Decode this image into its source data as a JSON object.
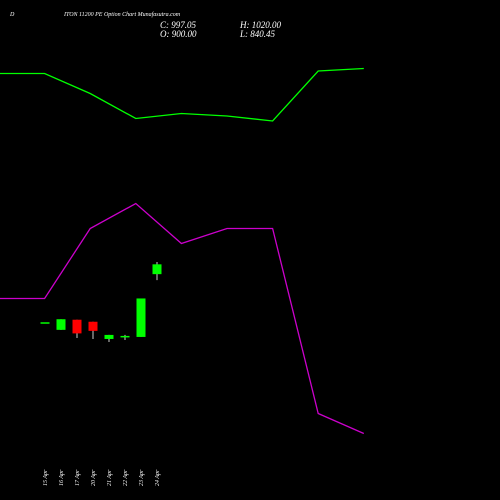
{
  "header": {
    "symbol_prefix": "D",
    "title": "ITON 11200 PE Option  Chart Munafasutra.com",
    "close_label": "C: 997.05",
    "open_label": "O: 900.00",
    "high_label": "H: 1020.00",
    "low_label": "L: 840.45"
  },
  "chart_data": {
    "type": "candlestick",
    "categories": [
      "15 Apr",
      "16 Apr",
      "17 Apr",
      "20 Apr",
      "21 Apr",
      "22 Apr",
      "23 Apr",
      "24 Apr"
    ],
    "candles": [
      {
        "date": "15 Apr",
        "open": 425,
        "close": 425,
        "high": 425,
        "low": 425,
        "color": "#00ff00"
      },
      {
        "date": "16 Apr",
        "open": 350,
        "close": 455,
        "high": 455,
        "low": 350,
        "color": "#00ff00"
      },
      {
        "date": "17 Apr",
        "open": 450,
        "close": 315,
        "high": 450,
        "low": 270,
        "color": "#ff0000"
      },
      {
        "date": "20 Apr",
        "open": 430,
        "close": 340,
        "high": 430,
        "low": 260,
        "color": "#ff0000"
      },
      {
        "date": "21 Apr",
        "open": 260,
        "close": 300,
        "high": 300,
        "low": 230,
        "color": "#00ff00"
      },
      {
        "date": "22 Apr",
        "open": 280,
        "close": 290,
        "high": 300,
        "low": 250,
        "color": "#00ff00"
      },
      {
        "date": "23 Apr",
        "open": 280,
        "close": 660,
        "high": 660,
        "low": 280,
        "color": "#00ff00"
      },
      {
        "date": "24 Apr",
        "open": 900,
        "close": 997.05,
        "high": 1020,
        "low": 840.45,
        "color": "#00ff00"
      }
    ],
    "upper_line": {
      "color": "#00ff00",
      "points": [
        [
          0,
          0.853
        ],
        [
          1,
          0.853
        ],
        [
          2,
          0.813
        ],
        [
          3,
          0.763
        ],
        [
          4,
          0.773
        ],
        [
          5,
          0.768
        ],
        [
          6,
          0.758
        ],
        [
          7,
          0.858
        ],
        [
          8,
          0.863
        ]
      ]
    },
    "lower_line": {
      "color": "#cc00cc",
      "points": [
        [
          0,
          0.403
        ],
        [
          1,
          0.403
        ],
        [
          2,
          0.543
        ],
        [
          3,
          0.593
        ],
        [
          4,
          0.513
        ],
        [
          5,
          0.543
        ],
        [
          6,
          0.543
        ],
        [
          7,
          0.173
        ],
        [
          8,
          0.133
        ]
      ]
    },
    "colors": {
      "up": "#00ff00",
      "down": "#ff0000",
      "background": "#000000"
    }
  }
}
